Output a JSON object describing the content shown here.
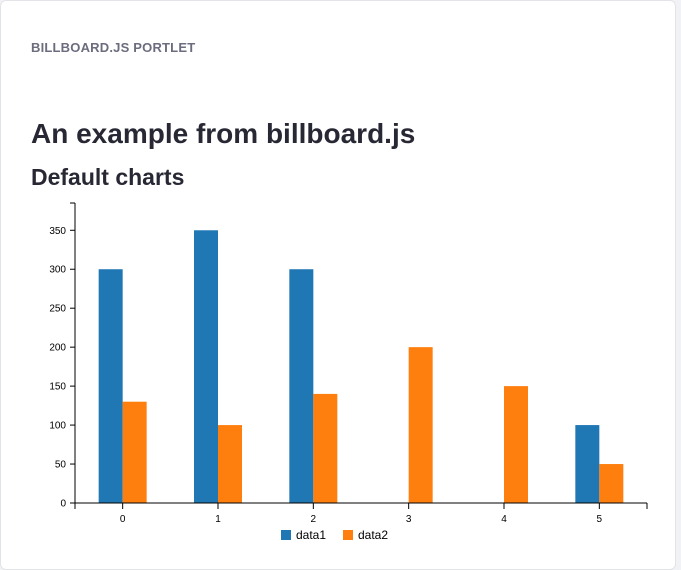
{
  "portlet": {
    "title": "BILLBOARD.JS PORTLET",
    "heading": "An example from billboard.js",
    "subheading": "Default charts"
  },
  "colors": {
    "data1": "#1f77b4",
    "data2": "#ff7f0e"
  },
  "chart_data": {
    "type": "bar",
    "categories": [
      "0",
      "1",
      "2",
      "3",
      "4",
      "5"
    ],
    "series": [
      {
        "name": "data1",
        "values": [
          300,
          350,
          300,
          0,
          0,
          100
        ]
      },
      {
        "name": "data2",
        "values": [
          130,
          100,
          140,
          200,
          150,
          50
        ]
      }
    ],
    "ylim": [
      0,
      385
    ],
    "yticks": [
      0,
      50,
      100,
      150,
      200,
      250,
      300,
      350
    ],
    "legend": "bottom",
    "grid": false
  }
}
